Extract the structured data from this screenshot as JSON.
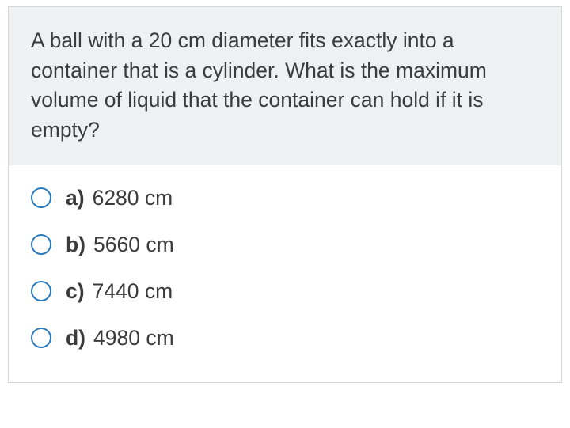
{
  "quiz": {
    "question": "A ball with a 20 cm diameter fits exactly into a container that is a cylinder. What is the maximum volume of liquid that the container can hold if it is empty?",
    "options": [
      {
        "key": "a)",
        "value": "6280 cm"
      },
      {
        "key": "b)",
        "value": "5660 cm"
      },
      {
        "key": "c)",
        "value": "7440 cm"
      },
      {
        "key": "d)",
        "value": "4980 cm"
      }
    ],
    "colors": {
      "question_bg": "#eef0f2",
      "border": "#d8d8d8",
      "text": "#3b3b3b",
      "radio_border": "#2a7bbd"
    },
    "typography": {
      "font_family": "Arial",
      "question_fontsize": 26.5,
      "option_fontsize": 26.5,
      "key_weight": 700,
      "value_weight": 400
    }
  }
}
